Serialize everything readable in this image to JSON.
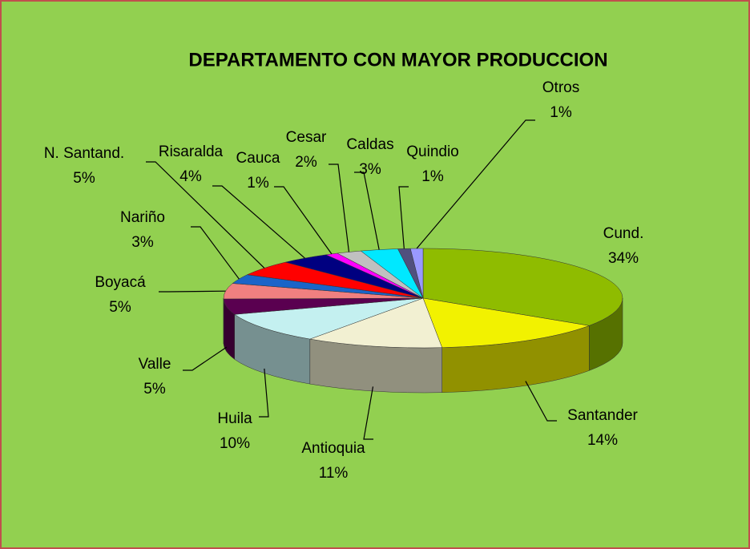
{
  "chart_data": {
    "type": "pie",
    "title": "DEPARTAMENTO  CON  MAYOR  PRODUCCION",
    "categories": [
      "Cund.",
      "Santander",
      "Antioquia",
      "Huila",
      "Valle",
      "Boyacá",
      "Nariño",
      "N. Santand.",
      "Risaralda",
      "Cauca",
      "Cesar",
      "Caldas",
      "Quindio",
      "Otros"
    ],
    "values": [
      34,
      14,
      11,
      10,
      5,
      5,
      3,
      5,
      4,
      1,
      2,
      3,
      1,
      1
    ],
    "value_labels": [
      "34%",
      "14%",
      "11%",
      "10%",
      "5%",
      "5%",
      "3%",
      "5%",
      "4%",
      "1%",
      "2%",
      "3%",
      "1%",
      "1%"
    ],
    "colors": [
      "#8fbc00",
      "#f2f200",
      "#f2f0d2",
      "#c4f0f0",
      "#5a0050",
      "#f08080",
      "#1a64c8",
      "#ff0000",
      "#000080",
      "#ff00ff",
      "#c0c0c0",
      "#00e8ff",
      "#50507e",
      "#9999ff"
    ]
  }
}
